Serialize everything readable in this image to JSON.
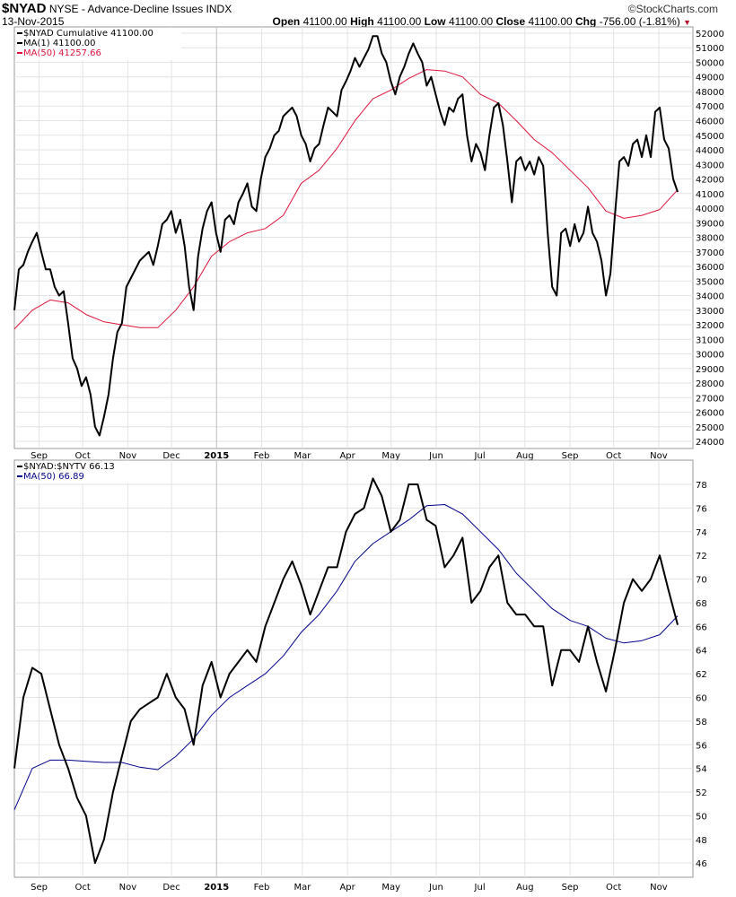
{
  "header": {
    "symbol": "$NYAD",
    "name": "NYSE - Advance-Decline Issues INDX",
    "date": "13-Nov-2015",
    "copyright": "©StockCharts.com",
    "open_label": "Open",
    "open": "41100.00",
    "high_label": "High",
    "high": "41100.00",
    "low_label": "Low",
    "low": "41100.00",
    "close_label": "Close",
    "close": "41100.00",
    "chg_label": "Chg",
    "chg": "-756.00 (-1.81%)",
    "chg_icon": "down-triangle-icon"
  },
  "colors": {
    "price": "#000000",
    "ma_red": "#dc143c",
    "ma_blue": "#00008b",
    "grid": "#e3e3e3"
  },
  "chart_data": [
    {
      "type": "line",
      "title": "$NYAD Cumulative",
      "x_range": [
        "2014-08-15",
        "2015-11-14"
      ],
      "x_ticks": [
        {
          "date": "2014-09-01",
          "label": "Sep"
        },
        {
          "date": "2014-10-01",
          "label": "Oct"
        },
        {
          "date": "2014-11-01",
          "label": "Nov"
        },
        {
          "date": "2014-12-01",
          "label": "Dec"
        },
        {
          "date": "2015-01-01",
          "label": "2015",
          "bold": true
        },
        {
          "date": "2015-02-01",
          "label": "Feb"
        },
        {
          "date": "2015-03-01",
          "label": "Mar"
        },
        {
          "date": "2015-04-01",
          "label": "Apr"
        },
        {
          "date": "2015-05-01",
          "label": "May"
        },
        {
          "date": "2015-06-01",
          "label": "Jun"
        },
        {
          "date": "2015-07-01",
          "label": "Jul"
        },
        {
          "date": "2015-08-01",
          "label": "Aug"
        },
        {
          "date": "2015-09-01",
          "label": "Sep"
        },
        {
          "date": "2015-10-01",
          "label": "Oct"
        },
        {
          "date": "2015-11-01",
          "label": "Nov"
        }
      ],
      "ylim": [
        23510,
        52430
      ],
      "y_ticks": [
        24000,
        25000,
        26000,
        27000,
        28000,
        29000,
        30000,
        31000,
        32000,
        33000,
        34000,
        35000,
        36000,
        37000,
        38000,
        39000,
        40000,
        41000,
        42000,
        43000,
        44000,
        45000,
        46000,
        47000,
        48000,
        49000,
        50000,
        51000,
        52000
      ],
      "legend": [
        {
          "label": "$NYAD Cumulative 41100.00",
          "color": "#000000"
        },
        {
          "label": "MA(1) 41100.00",
          "color": "#000000"
        },
        {
          "label": "MA(50) 41257.66",
          "color": "#dc143c"
        }
      ],
      "series": [
        {
          "name": "$NYAD Cumulative",
          "color": "#000000",
          "width": 2,
          "values": [
            33000,
            35800,
            36100,
            37000,
            37700,
            38300,
            37000,
            35800,
            35800,
            34600,
            34000,
            34300,
            32100,
            29700,
            29000,
            27800,
            28400,
            27200,
            25000,
            24400,
            25700,
            27200,
            29700,
            31500,
            32100,
            34600,
            35200,
            35800,
            36400,
            36700,
            37000,
            36100,
            37400,
            38900,
            39200,
            39800,
            38300,
            39200,
            37400,
            34600,
            33000,
            36700,
            38600,
            39800,
            40400,
            38300,
            37000,
            39200,
            39500,
            38900,
            40400,
            41000,
            41700,
            40100,
            39800,
            42000,
            43500,
            44100,
            45000,
            45300,
            46300,
            46600,
            46900,
            46300,
            45000,
            44400,
            43200,
            44100,
            44400,
            45700,
            46900,
            46600,
            46300,
            48100,
            48700,
            49400,
            50300,
            49700,
            50300,
            50900,
            51800,
            51800,
            50600,
            50000,
            48700,
            47800,
            49000,
            49700,
            50600,
            51300,
            50600,
            50000,
            48400,
            49000,
            47800,
            46600,
            45700,
            46900,
            46600,
            47500,
            47800,
            45000,
            43200,
            44400,
            43800,
            42600,
            45000,
            46900,
            47200,
            45700,
            43200,
            40400,
            43200,
            43500,
            42600,
            43200,
            42300,
            43500,
            42900,
            38300,
            34600,
            34000,
            38300,
            38600,
            37400,
            38900,
            37700,
            38300,
            40100,
            38300,
            37700,
            36400,
            34000,
            35500,
            39500,
            43200,
            43500,
            42900,
            44400,
            44700,
            43500,
            45000,
            43500,
            46600,
            46900,
            44700,
            44100,
            42000,
            41100
          ]
        },
        {
          "name": "MA(50)",
          "color": "#dc143c",
          "width": 1,
          "values": [
            31700,
            33000,
            33700,
            33500,
            32700,
            32200,
            32000,
            31800,
            31800,
            33000,
            34600,
            36700,
            37700,
            38300,
            38600,
            39500,
            41700,
            42600,
            44100,
            46000,
            47500,
            48100,
            48900,
            49500,
            49400,
            49000,
            47800,
            47200,
            46000,
            44700,
            43800,
            42600,
            41400,
            39800,
            39300,
            39500,
            39900,
            41257.66
          ]
        }
      ]
    },
    {
      "type": "line",
      "title": "$NYAD:$NYTV",
      "x_range": [
        "2014-08-15",
        "2015-11-14"
      ],
      "ylim": [
        44.8,
        80.05
      ],
      "y_ticks": [
        46,
        48,
        50,
        52,
        54,
        56,
        58,
        60,
        62,
        64,
        66,
        68,
        70,
        72,
        74,
        76,
        78
      ],
      "legend": [
        {
          "label": "$NYAD:$NYTV 66.13",
          "color": "#000000"
        },
        {
          "label": "MA(50) 66.89",
          "color": "#00008b"
        }
      ],
      "series": [
        {
          "name": "$NYAD:$NYTV",
          "color": "#000000",
          "width": 2,
          "values": [
            54,
            60,
            62.5,
            62,
            59,
            56,
            54,
            51.5,
            50,
            46,
            48,
            52,
            55,
            58,
            59,
            59.5,
            60,
            62,
            60,
            59,
            56,
            61,
            63,
            60,
            62,
            63,
            64,
            63,
            66,
            68,
            70,
            71.5,
            69.5,
            67,
            69,
            71,
            71,
            74,
            75.5,
            76,
            78.5,
            77,
            74,
            75,
            78,
            78,
            75,
            74.5,
            71,
            72,
            73.5,
            68,
            69,
            71,
            72,
            68,
            67,
            67,
            66,
            66,
            61,
            64,
            64,
            63,
            66,
            63,
            60.5,
            64,
            68,
            70,
            69,
            70,
            72,
            69,
            66.13
          ]
        },
        {
          "name": "MA(50)",
          "color": "#00008b",
          "width": 1,
          "values": [
            50.5,
            54,
            54.7,
            54.7,
            54.6,
            54.5,
            54.5,
            54.1,
            53.9,
            55,
            56.5,
            58.5,
            60,
            61,
            62,
            63.5,
            65.5,
            67,
            69,
            71.5,
            73,
            74,
            75,
            76.2,
            76.3,
            75.5,
            74,
            72.5,
            70.5,
            69,
            67.5,
            66.5,
            66,
            65,
            64.6,
            64.8,
            65.3,
            66.89
          ]
        }
      ]
    }
  ]
}
